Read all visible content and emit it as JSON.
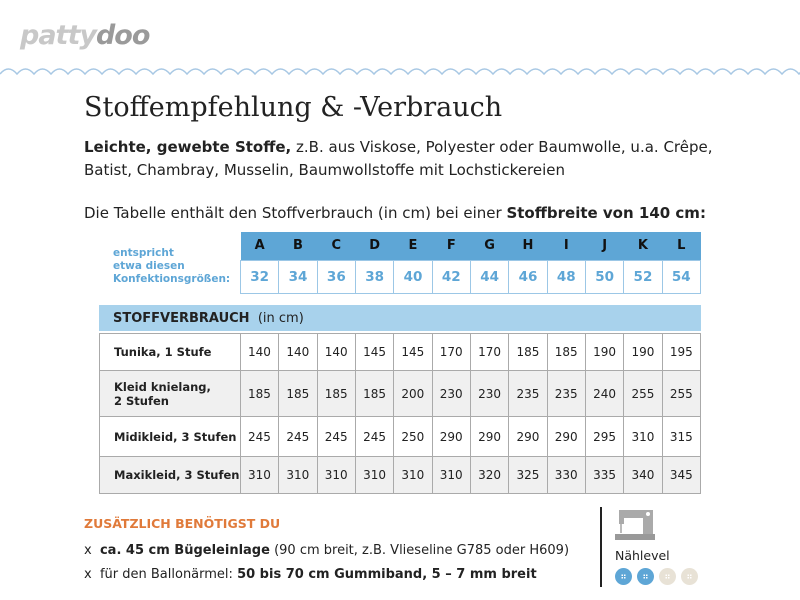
{
  "logo": {
    "part1": "patty",
    "part2": "doo"
  },
  "title": "Stoffempfehlung & -Verbrauch",
  "intro": {
    "bold": "Leichte, gewebte Stoffe,",
    "text": " z.B. aus Viskose, Polyester oder Baumwolle, u.a. Crêpe, Batist, Chambray, Musselin, Baumwollstoffe mit Lochstickereien"
  },
  "table_intro": {
    "text": "Die Tabelle enthält den Stoffverbrauch (in cm) bei einer ",
    "bold": "Stoffbreite von 140 cm",
    "end": ":"
  },
  "size_label": [
    "entspricht",
    "etwa diesen",
    "Konfektionsgrößen:"
  ],
  "sizes": {
    "letters": [
      "A",
      "B",
      "C",
      "D",
      "E",
      "F",
      "G",
      "H",
      "I",
      "J",
      "K",
      "L"
    ],
    "numbers": [
      "32",
      "34",
      "36",
      "38",
      "40",
      "42",
      "44",
      "46",
      "48",
      "50",
      "52",
      "54"
    ]
  },
  "consumption": {
    "title": "STOFFVERBRAUCH",
    "unit": "(in cm)",
    "rows": [
      {
        "label": "Tunika, 1 Stufe",
        "values": [
          "140",
          "140",
          "140",
          "145",
          "145",
          "170",
          "170",
          "185",
          "185",
          "190",
          "190",
          "195"
        ]
      },
      {
        "label": "Kleid knielang,\n2 Stufen",
        "values": [
          "185",
          "185",
          "185",
          "185",
          "200",
          "230",
          "230",
          "235",
          "235",
          "240",
          "255",
          "255"
        ]
      },
      {
        "label": "Midikleid, 3 Stufen",
        "values": [
          "245",
          "245",
          "245",
          "245",
          "250",
          "290",
          "290",
          "290",
          "290",
          "295",
          "310",
          "315"
        ]
      },
      {
        "label": "Maxikleid, 3 Stufen",
        "values": [
          "310",
          "310",
          "310",
          "310",
          "310",
          "310",
          "320",
          "325",
          "330",
          "335",
          "340",
          "345"
        ]
      }
    ]
  },
  "extras": {
    "title": "ZUSÄTZLICH BENÖTIGST DU",
    "items": [
      {
        "bullet": "x",
        "bold": "ca. 45 cm Bügeleinlage",
        "text": " (90 cm breit, z.B. Vlieseline G785 oder H609)"
      },
      {
        "bullet": "x",
        "text": "für den Ballonärmel: ",
        "bold": "50 bis 70 cm Gummiband, 5 – 7 mm breit"
      }
    ]
  },
  "sewing_level": {
    "label": "Nählevel",
    "level": 2,
    "max": 5,
    "icon": "sewing-machine-icon",
    "active_color": "#5ea6d6",
    "inactive_color": "#e8e2d6"
  },
  "colors": {
    "accent_blue": "#5ea6d6",
    "band_blue": "#a8d2ec",
    "orange": "#e07a3a"
  }
}
